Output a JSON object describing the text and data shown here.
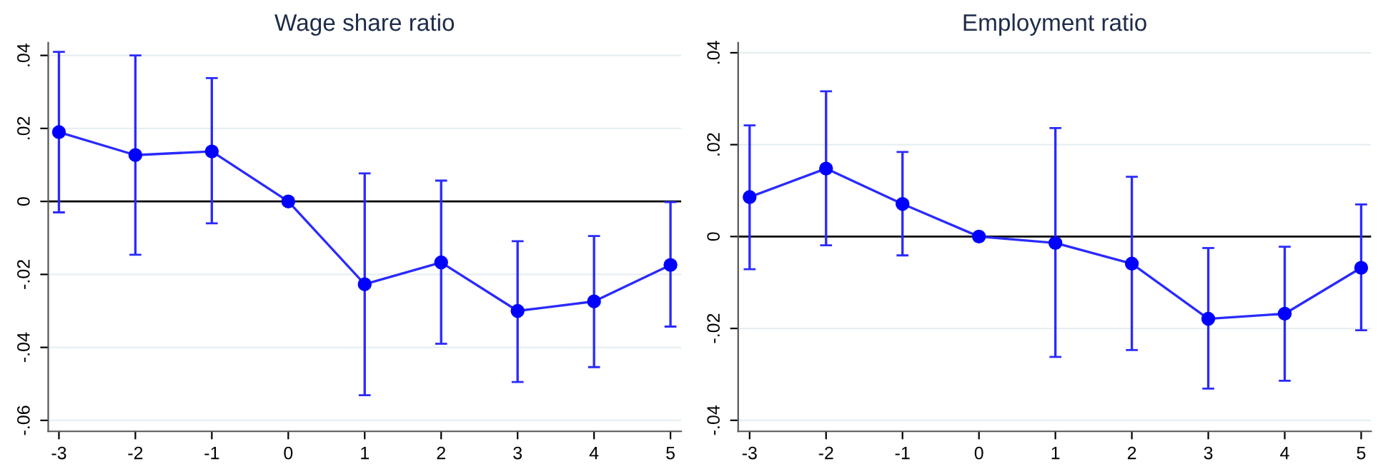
{
  "chart_data": [
    {
      "type": "line",
      "title": "Wage share ratio",
      "x": [
        -3,
        -2,
        -1,
        0,
        1,
        2,
        3,
        4,
        5
      ],
      "series": [
        {
          "color": "#2a2aff",
          "values": [
            0.019,
            0.0127,
            0.0137,
            0,
            -0.0227,
            -0.0167,
            -0.03,
            -0.0274,
            -0.0174
          ],
          "errors": [
            [
              -0.003,
              0.041
            ],
            [
              -0.0146,
              0.04
            ],
            [
              -0.006,
              0.0338
            ],
            null,
            [
              -0.0531,
              0.0077
            ],
            [
              -0.039,
              0.0057
            ],
            [
              -0.0495,
              -0.0109
            ],
            [
              -0.0454,
              -0.0095
            ],
            [
              -0.0343,
              -0.0002
            ]
          ]
        }
      ],
      "xlim": [
        -3.14,
        5.14
      ],
      "xticks": [
        -3,
        -2,
        -1,
        0,
        1,
        2,
        3,
        4,
        5
      ],
      "ylim": [
        -0.063,
        0.0435
      ],
      "yticks": [
        {
          "value": 0.04,
          "label": ".04"
        },
        {
          "value": 0.02,
          "label": ".02"
        },
        0,
        {
          "value": -0.02,
          "label": "-.02"
        },
        {
          "value": -0.04,
          "label": "-.04"
        },
        {
          "value": -0.06,
          "label": "-.06"
        }
      ],
      "ref_lines": [
        {
          "axis": "y",
          "value": 0,
          "color": "#000000"
        }
      ],
      "grid": "y",
      "marker": "circle",
      "line_style": "solid"
    },
    {
      "type": "line",
      "title": "Employment ratio",
      "x": [
        -3,
        -2,
        -1,
        0,
        1,
        2,
        3,
        4,
        5
      ],
      "series": [
        {
          "color": "#2a2aff",
          "values": [
            0.0086,
            0.0148,
            0.0071,
            0,
            -0.0014,
            -0.0059,
            -0.0179,
            -0.0168,
            -0.0068
          ],
          "errors": [
            [
              -0.0071,
              0.0242
            ],
            [
              -0.0019,
              0.0316
            ],
            [
              -0.0041,
              0.0184
            ],
            null,
            [
              -0.0262,
              0.0236
            ],
            [
              -0.0247,
              0.013
            ],
            [
              -0.0331,
              -0.0025
            ],
            [
              -0.0314,
              -0.0022
            ],
            [
              -0.0204,
              0.007
            ]
          ]
        }
      ],
      "xlim": [
        -3.15,
        5.13
      ],
      "xticks": [
        -3,
        -2,
        -1,
        0,
        1,
        2,
        3,
        4,
        5
      ],
      "ylim": [
        -0.0424,
        0.0422
      ],
      "yticks": [
        {
          "value": 0.04,
          "label": ".04"
        },
        {
          "value": 0.02,
          "label": ".02"
        },
        0,
        {
          "value": -0.02,
          "label": "-.02"
        },
        {
          "value": -0.04,
          "label": "-.04"
        }
      ],
      "ref_lines": [
        {
          "axis": "y",
          "value": 0,
          "color": "#000000"
        }
      ],
      "grid": "y",
      "marker": "circle",
      "line_style": "solid"
    }
  ]
}
